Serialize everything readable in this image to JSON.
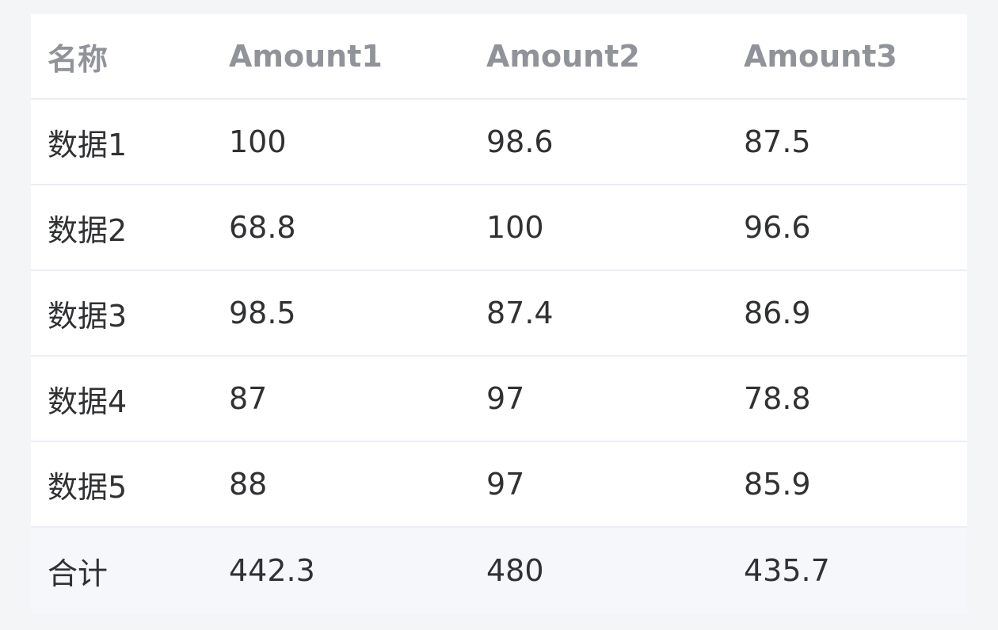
{
  "table": {
    "headers": [
      "名称",
      "Amount1",
      "Amount2",
      "Amount3"
    ],
    "rows": [
      [
        "数据1",
        "100",
        "98.6",
        "87.5"
      ],
      [
        "数据2",
        "68.8",
        "100",
        "96.6"
      ],
      [
        "数据3",
        "98.5",
        "87.4",
        "86.9"
      ],
      [
        "数据4",
        "87",
        "97",
        "78.8"
      ],
      [
        "数据5",
        "88",
        "97",
        "85.9"
      ]
    ],
    "summary": [
      "合计",
      "442.3",
      "480",
      "435.7"
    ]
  },
  "colors": {
    "page_background": "#f4f5f7",
    "header_text": "#909399",
    "body_text": "#303133",
    "row_divider": "#ebeef5",
    "summary_background": "#f5f7fa"
  }
}
